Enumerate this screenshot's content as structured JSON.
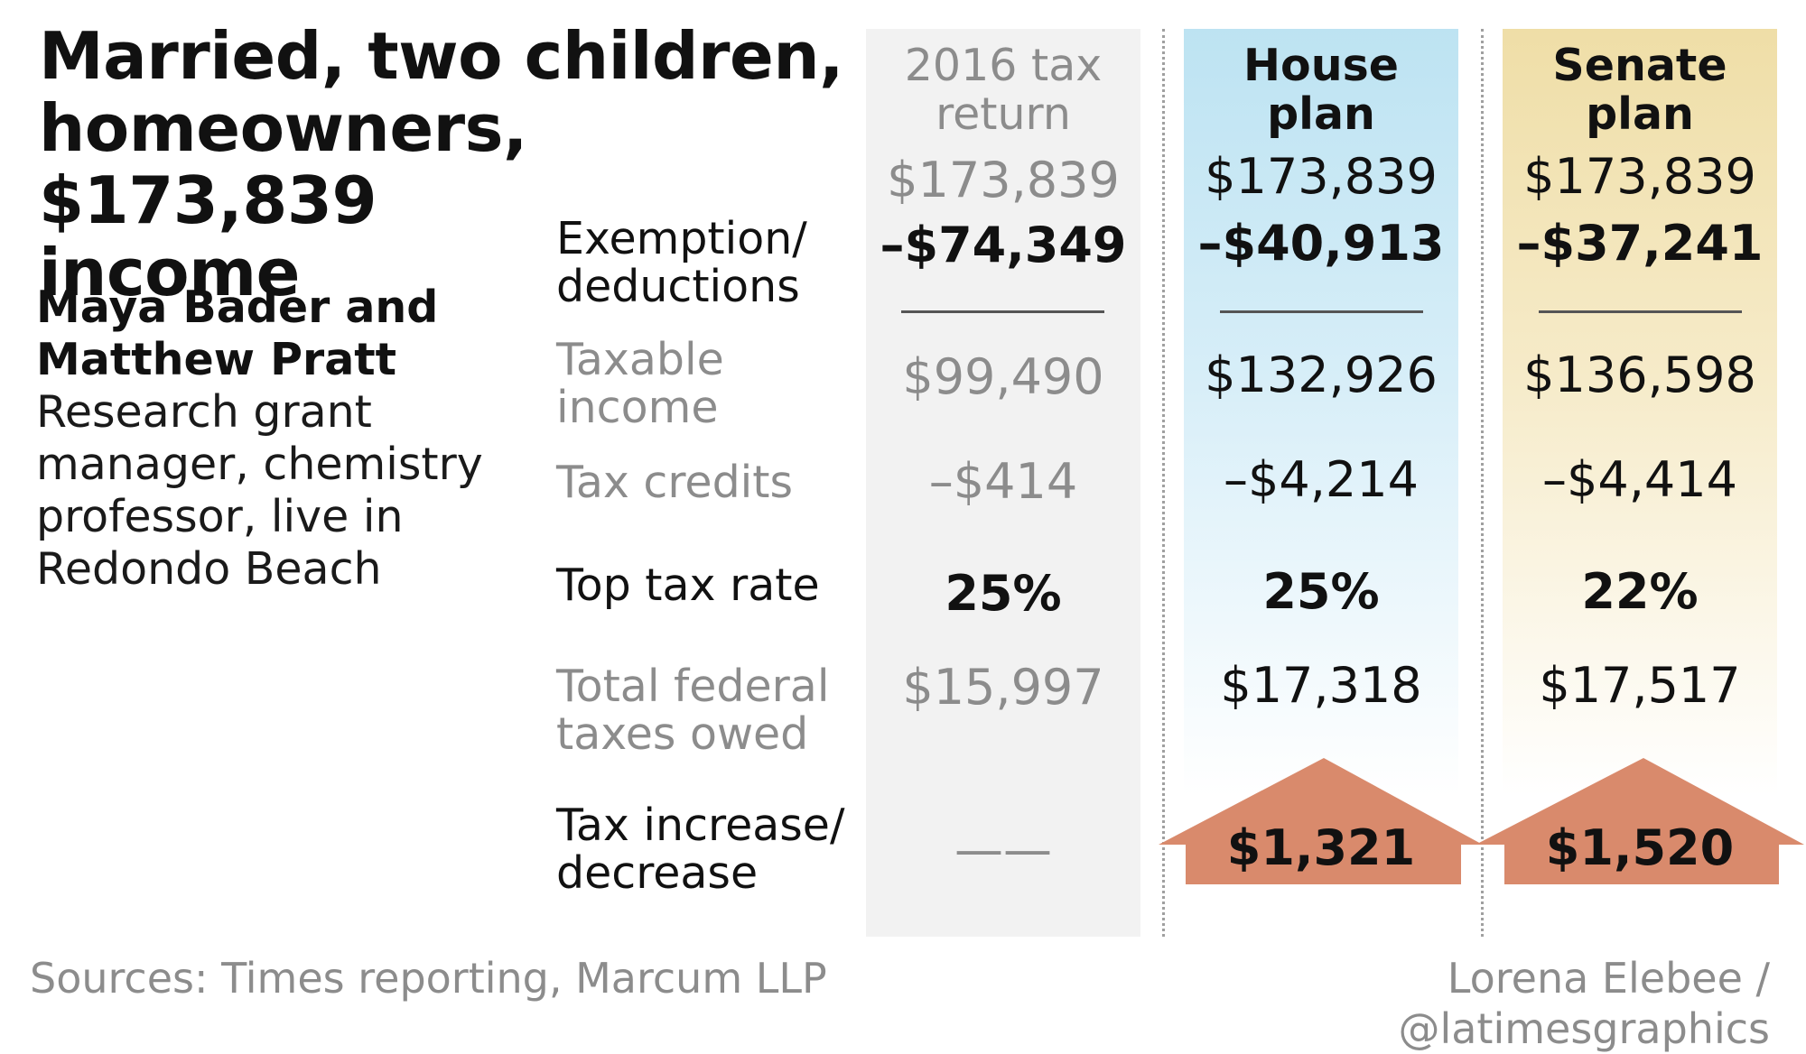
{
  "title": {
    "line1": "Married, two children,",
    "line2": "homeowners, $173,839",
    "line3": "income"
  },
  "people": {
    "name_line1": "Maya Bader and",
    "name_line2": "Matthew Pratt",
    "desc_line1": "Research grant",
    "desc_line2": "manager, chemistry",
    "desc_line3": "professor, live in",
    "desc_line4": "Redondo Beach"
  },
  "row_labels": {
    "exemption_l1": "Exemption/",
    "exemption_l2": "deductions",
    "taxable_l1": "Taxable",
    "taxable_l2": "income",
    "credits": "Tax credits",
    "top_rate": "Top tax rate",
    "total_l1": "Total federal",
    "total_l2": "taxes owed",
    "change_l1": "Tax increase/",
    "change_l2": "decrease"
  },
  "columns": {
    "c2016": {
      "head_l1": "2016 tax",
      "head_l2": "return",
      "income": "$173,839",
      "deductions": "–$74,349",
      "taxable": "$99,490",
      "credits": "–$414",
      "top_rate": "25%",
      "total": "$15,997",
      "change": "——"
    },
    "house": {
      "head": "House plan",
      "income": "$173,839",
      "deductions": "–$40,913",
      "taxable": "$132,926",
      "credits": "–$4,214",
      "top_rate": "25%",
      "total": "$17,318",
      "change": "$1,321"
    },
    "senate": {
      "head": "Senate plan",
      "income": "$173,839",
      "deductions": "–$37,241",
      "taxable": "$136,598",
      "credits": "–$4,414",
      "top_rate": "22%",
      "total": "$17,517",
      "change": "$1,520"
    }
  },
  "colors": {
    "house_top": "#bde3f2",
    "senate_top": "#efdea7",
    "arrow": "#d98a6c",
    "column_2016": "#f2f2f2",
    "muted_text": "#8c8c8c"
  },
  "footer": {
    "sources": "Sources: Times reporting, Marcum LLP",
    "credit": "Lorena Elebee / @latimesgraphics"
  },
  "chart_data": {
    "type": "table",
    "columns": [
      "2016 tax return",
      "House plan",
      "Senate plan"
    ],
    "rows": [
      {
        "label": "",
        "values": [
          "$173,839",
          "$173,839",
          "$173,839"
        ]
      },
      {
        "label": "Exemption/ deductions",
        "values": [
          "–$74,349",
          "–$40,913",
          "–$37,241"
        ]
      },
      {
        "label": "Taxable income",
        "values": [
          "$99,490",
          "$132,926",
          "$136,598"
        ]
      },
      {
        "label": "Tax credits",
        "values": [
          "–$414",
          "–$4,214",
          "–$4,414"
        ]
      },
      {
        "label": "Top tax rate",
        "values": [
          "25%",
          "25%",
          "22%"
        ]
      },
      {
        "label": "Total federal taxes owed",
        "values": [
          "$15,997",
          "$17,318",
          "$17,517"
        ]
      },
      {
        "label": "Tax increase/ decrease",
        "values": [
          "——",
          "$1,321",
          "$1,520"
        ]
      }
    ]
  }
}
